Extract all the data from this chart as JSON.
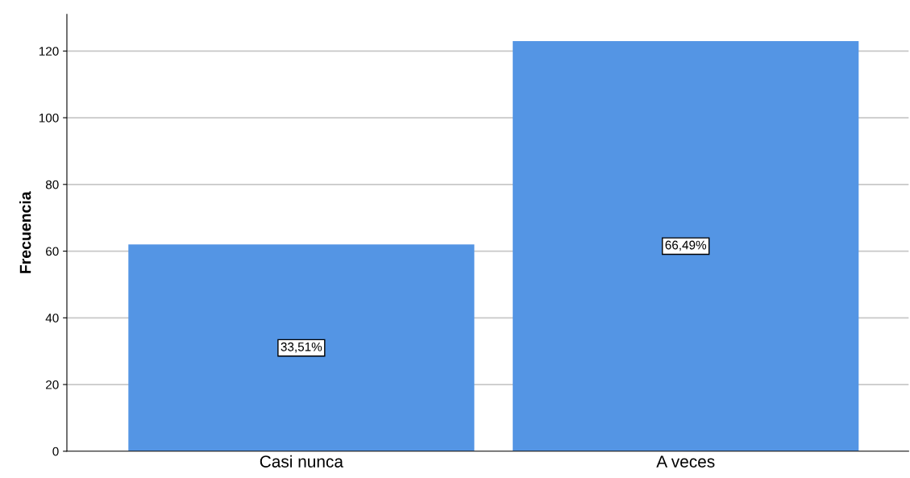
{
  "chart_data": {
    "type": "bar",
    "ylabel": "Frecuencia",
    "categories": [
      "Casi nunca",
      "A veces"
    ],
    "values": [
      62,
      123
    ],
    "annotations": [
      "33,51%",
      "66,49%"
    ],
    "color": "#5495e4",
    "ylim": [
      0,
      131
    ],
    "yticks": [
      0,
      20,
      40,
      60,
      80,
      100,
      120
    ],
    "grid": "y"
  }
}
